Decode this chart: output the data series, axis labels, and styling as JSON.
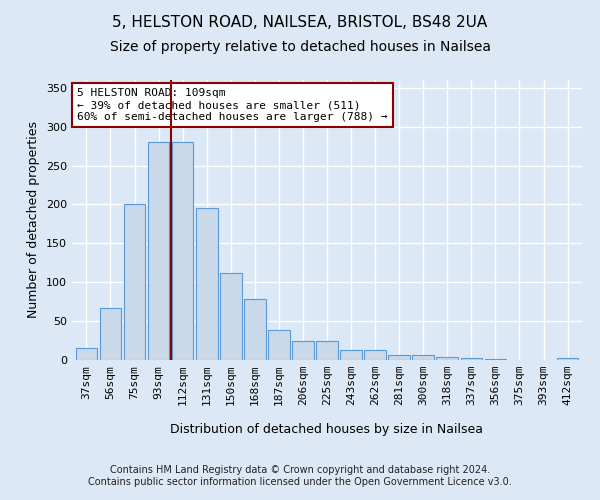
{
  "title1": "5, HELSTON ROAD, NAILSEA, BRISTOL, BS48 2UA",
  "title2": "Size of property relative to detached houses in Nailsea",
  "xlabel": "Distribution of detached houses by size in Nailsea",
  "ylabel": "Number of detached properties",
  "footer": "Contains HM Land Registry data © Crown copyright and database right 2024.\nContains public sector information licensed under the Open Government Licence v3.0.",
  "categories": [
    "37sqm",
    "56sqm",
    "75sqm",
    "93sqm",
    "112sqm",
    "131sqm",
    "150sqm",
    "168sqm",
    "187sqm",
    "206sqm",
    "225sqm",
    "243sqm",
    "262sqm",
    "281sqm",
    "300sqm",
    "318sqm",
    "337sqm",
    "356sqm",
    "375sqm",
    "393sqm",
    "412sqm"
  ],
  "bar_values": [
    16,
    67,
    200,
    280,
    280,
    195,
    112,
    79,
    38,
    25,
    25,
    13,
    13,
    7,
    6,
    4,
    2,
    1,
    0,
    0,
    2
  ],
  "bar_color": "#c9d9ea",
  "bar_edge_color": "#5b9bd5",
  "vline_x_index": 3.5,
  "vline_color": "#8b0000",
  "annotation_text": "5 HELSTON ROAD: 109sqm\n← 39% of detached houses are smaller (511)\n60% of semi-detached houses are larger (788) →",
  "annotation_box_color": "white",
  "annotation_box_edge": "#8b0000",
  "ylim": [
    0,
    360
  ],
  "yticks": [
    0,
    50,
    100,
    150,
    200,
    250,
    300,
    350
  ],
  "bg_color": "#dce8f5",
  "plot_bg_color": "#dce8f5",
  "grid_color": "white",
  "title1_fontsize": 11,
  "title2_fontsize": 10,
  "tick_fontsize": 8,
  "label_fontsize": 9,
  "footer_fontsize": 7
}
